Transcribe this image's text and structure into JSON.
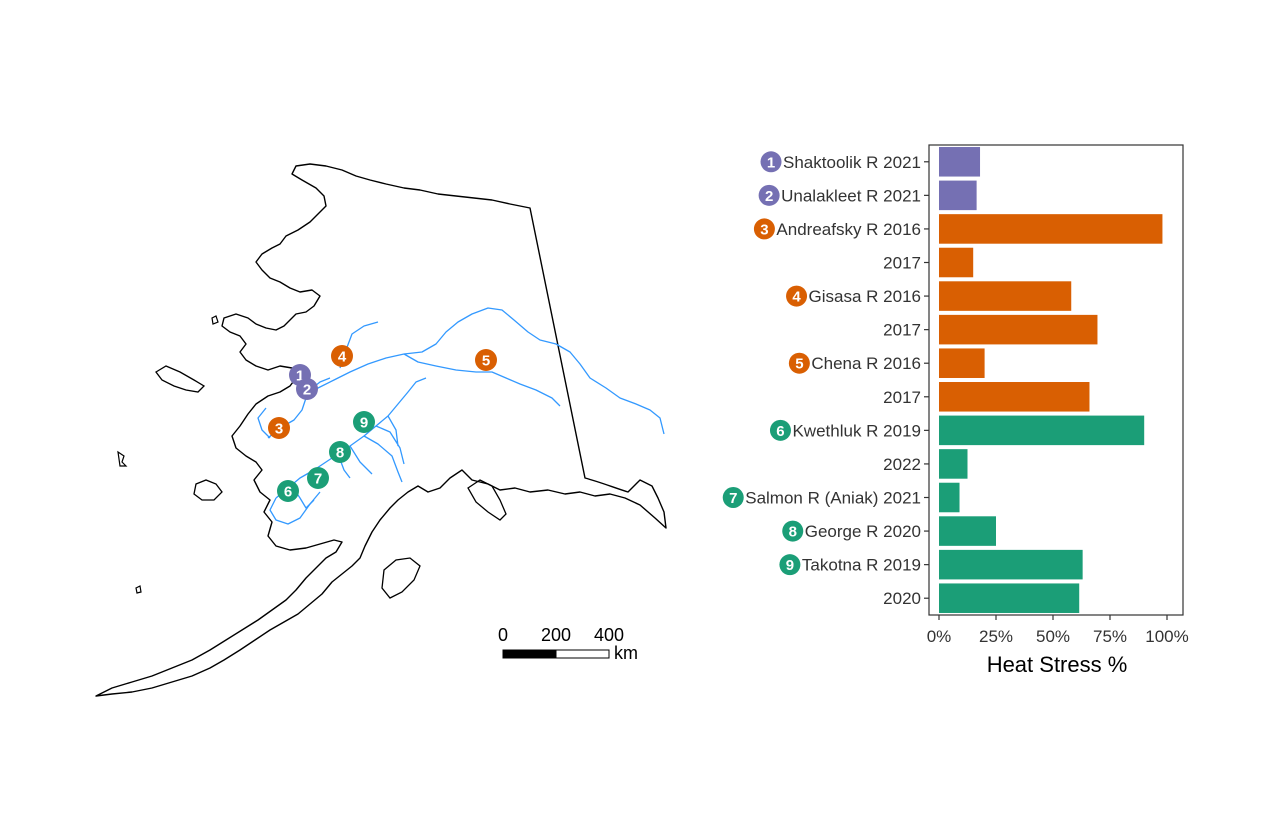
{
  "colors": {
    "north": "#7570b3",
    "yukon": "#d95f02",
    "kuskokwim": "#1b9e77",
    "river": "#3399ff",
    "coast": "#000000"
  },
  "map": {
    "sites": [
      {
        "id": "1",
        "group": "north"
      },
      {
        "id": "2",
        "group": "north"
      },
      {
        "id": "3",
        "group": "yukon"
      },
      {
        "id": "4",
        "group": "yukon"
      },
      {
        "id": "5",
        "group": "yukon"
      },
      {
        "id": "6",
        "group": "kuskokwim"
      },
      {
        "id": "7",
        "group": "kuskokwim"
      },
      {
        "id": "8",
        "group": "kuskokwim"
      },
      {
        "id": "9",
        "group": "kuskokwim"
      }
    ],
    "scale_bar": {
      "labels": [
        "0",
        "200",
        "400"
      ],
      "unit": "km"
    }
  },
  "chart_data": {
    "type": "bar",
    "orientation": "horizontal",
    "xlabel": "Heat Stress %",
    "xlim": [
      0,
      100
    ],
    "xticks": [
      "0%",
      "25%",
      "50%",
      "75%",
      "100%"
    ],
    "xtick_values": [
      0,
      25,
      50,
      75,
      100
    ],
    "categories": [
      {
        "label": "Shaktoolik R 2021",
        "marker": "1",
        "group": "north",
        "value": 18
      },
      {
        "label": "Unalakleet R 2021",
        "marker": "2",
        "group": "north",
        "value": 16.5
      },
      {
        "label": "Andreafsky R 2016",
        "marker": "3",
        "group": "yukon",
        "value": 98
      },
      {
        "label": "2017",
        "marker": "",
        "group": "yukon",
        "value": 15
      },
      {
        "label": "Gisasa R 2016",
        "marker": "4",
        "group": "yukon",
        "value": 58
      },
      {
        "label": "2017",
        "marker": "",
        "group": "yukon",
        "value": 69.5
      },
      {
        "label": "Chena R 2016",
        "marker": "5",
        "group": "yukon",
        "value": 20
      },
      {
        "label": "2017",
        "marker": "",
        "group": "yukon",
        "value": 66
      },
      {
        "label": "Kwethluk R 2019",
        "marker": "6",
        "group": "kuskokwim",
        "value": 90
      },
      {
        "label": "2022",
        "marker": "",
        "group": "kuskokwim",
        "value": 12.5
      },
      {
        "label": "Salmon R (Aniak) 2021",
        "marker": "7",
        "group": "kuskokwim",
        "value": 9
      },
      {
        "label": "George R 2020",
        "marker": "8",
        "group": "kuskokwim",
        "value": 25
      },
      {
        "label": "Takotna R 2019",
        "marker": "9",
        "group": "kuskokwim",
        "value": 63
      },
      {
        "label": "2020",
        "marker": "",
        "group": "kuskokwim",
        "value": 61.5
      }
    ],
    "grid": false,
    "legend": "none"
  }
}
